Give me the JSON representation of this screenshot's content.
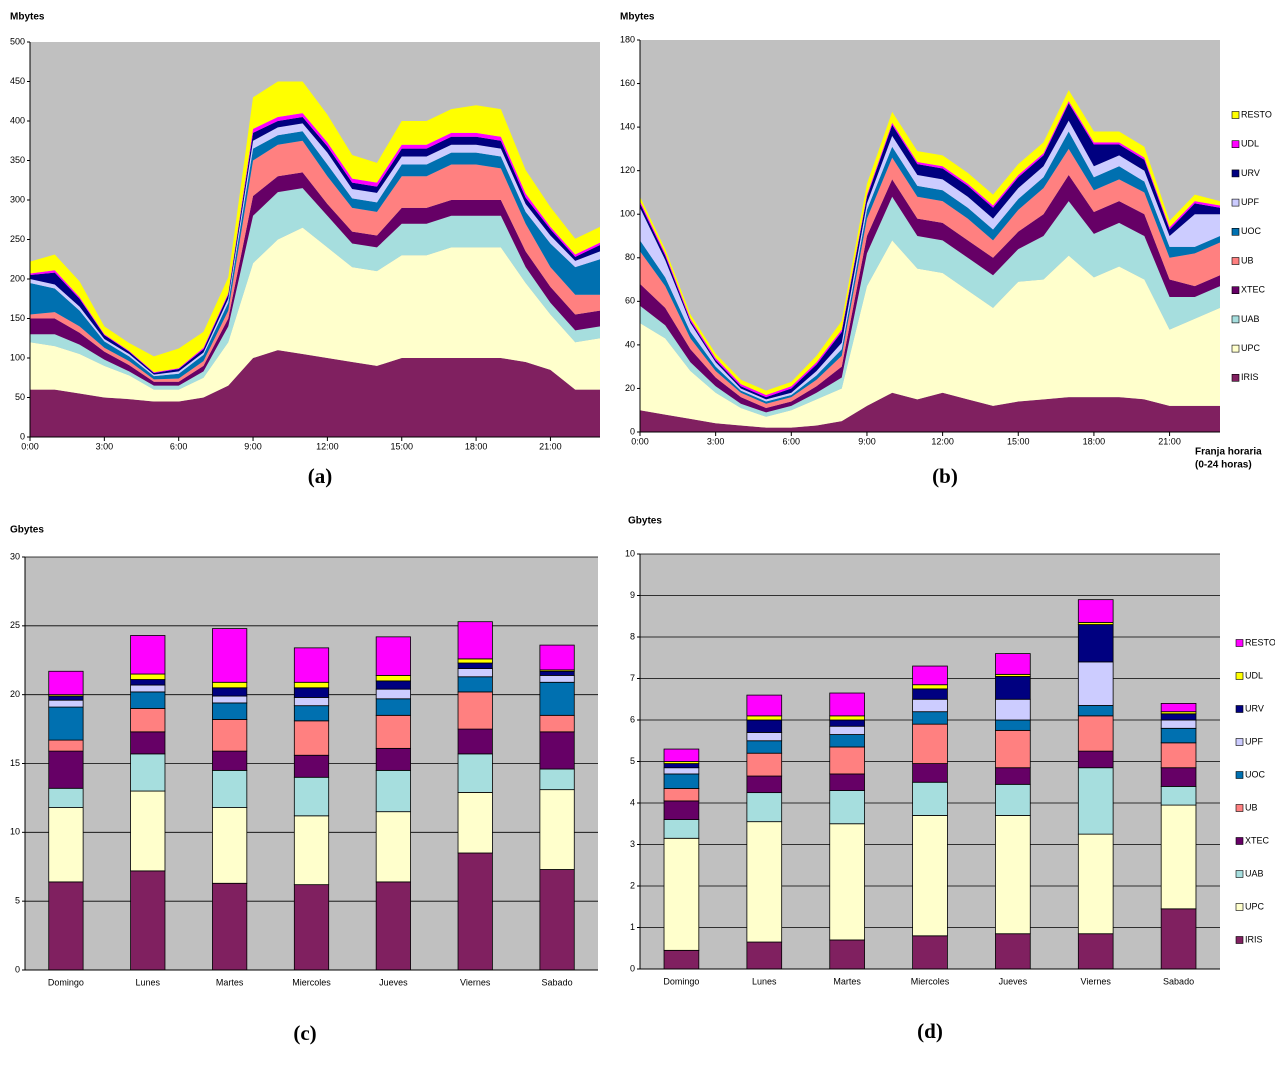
{
  "chart_data": [
    {
      "type": "area",
      "unit_label": "Mbytes",
      "caption": "(a)",
      "x": [
        0,
        1,
        2,
        3,
        4,
        5,
        6,
        7,
        8,
        9,
        10,
        11,
        12,
        13,
        14,
        15,
        16,
        17,
        18,
        19,
        20,
        21,
        22,
        23
      ],
      "xlim": [
        0,
        23
      ],
      "xticks": [
        {
          "value": 0,
          "label": "0:00"
        },
        {
          "value": 3,
          "label": "3:00"
        },
        {
          "value": 6,
          "label": "6:00"
        },
        {
          "value": 9,
          "label": "9:00"
        },
        {
          "value": 12,
          "label": "12:00"
        },
        {
          "value": 15,
          "label": "15:00"
        },
        {
          "value": 18,
          "label": "18:00"
        },
        {
          "value": 21,
          "label": "21:00"
        }
      ],
      "ylim": [
        0,
        500
      ],
      "yticks": [
        0,
        50,
        100,
        150,
        200,
        250,
        300,
        350,
        400,
        450,
        500
      ],
      "legend": false,
      "grid": false,
      "series": [
        {
          "name": "IRIS",
          "color": "#802060",
          "values": [
            60,
            60,
            55,
            50,
            48,
            45,
            45,
            50,
            65,
            100,
            110,
            105,
            100,
            95,
            90,
            100,
            100,
            100,
            100,
            100,
            95,
            85,
            60,
            60
          ]
        },
        {
          "name": "UPC",
          "color": "#ffffcc",
          "values": [
            60,
            55,
            50,
            40,
            30,
            15,
            15,
            25,
            55,
            120,
            140,
            160,
            140,
            120,
            120,
            130,
            130,
            140,
            140,
            140,
            100,
            70,
            60,
            65
          ]
        },
        {
          "name": "UAB",
          "color": "#a6dede",
          "values": [
            10,
            15,
            12,
            8,
            5,
            5,
            5,
            8,
            20,
            60,
            60,
            50,
            40,
            30,
            30,
            40,
            40,
            40,
            40,
            40,
            20,
            15,
            15,
            15
          ]
        },
        {
          "name": "XTEC",
          "color": "#660066",
          "values": [
            20,
            20,
            15,
            10,
            8,
            5,
            5,
            7,
            10,
            25,
            20,
            20,
            15,
            15,
            15,
            20,
            20,
            20,
            20,
            20,
            20,
            20,
            20,
            20
          ]
        },
        {
          "name": "UB",
          "color": "#ff8080",
          "values": [
            5,
            8,
            8,
            5,
            5,
            3,
            4,
            6,
            10,
            45,
            40,
            40,
            35,
            30,
            30,
            40,
            40,
            45,
            45,
            40,
            35,
            25,
            25,
            20
          ]
        },
        {
          "name": "UOC",
          "color": "#0070b0",
          "values": [
            40,
            30,
            20,
            8,
            6,
            4,
            6,
            8,
            10,
            15,
            12,
            12,
            15,
            12,
            12,
            15,
            15,
            15,
            15,
            15,
            15,
            30,
            35,
            45
          ]
        },
        {
          "name": "UPF",
          "color": "#ccccff",
          "values": [
            5,
            5,
            5,
            3,
            3,
            2,
            3,
            3,
            5,
            10,
            10,
            10,
            15,
            12,
            12,
            10,
            10,
            10,
            10,
            10,
            10,
            10,
            8,
            10
          ]
        },
        {
          "name": "URV",
          "color": "#000080",
          "values": [
            5,
            15,
            10,
            5,
            3,
            2,
            3,
            4,
            5,
            10,
            8,
            8,
            8,
            8,
            8,
            10,
            10,
            10,
            10,
            10,
            8,
            8,
            5,
            8
          ]
        },
        {
          "name": "UDL",
          "color": "#ff00ff",
          "values": [
            2,
            3,
            2,
            1,
            1,
            1,
            1,
            2,
            2,
            5,
            5,
            5,
            5,
            5,
            5,
            5,
            5,
            5,
            5,
            5,
            5,
            3,
            3,
            3
          ]
        },
        {
          "name": "RESTO",
          "color": "#ffff00",
          "values": [
            15,
            20,
            20,
            10,
            10,
            20,
            25,
            20,
            20,
            40,
            45,
            40,
            35,
            30,
            25,
            30,
            30,
            30,
            35,
            35,
            30,
            25,
            20,
            20
          ]
        }
      ]
    },
    {
      "type": "area",
      "unit_label": "Mbytes",
      "caption": "(b)",
      "x_label": [
        "Franja horaria",
        "(0-24 horas)"
      ],
      "x": [
        0,
        1,
        2,
        3,
        4,
        5,
        6,
        7,
        8,
        9,
        10,
        11,
        12,
        13,
        14,
        15,
        16,
        17,
        18,
        19,
        20,
        21,
        22,
        23
      ],
      "xlim": [
        0,
        23
      ],
      "xticks": [
        {
          "value": 0,
          "label": "0:00"
        },
        {
          "value": 3,
          "label": "3:00"
        },
        {
          "value": 6,
          "label": "6:00"
        },
        {
          "value": 9,
          "label": "9:00"
        },
        {
          "value": 12,
          "label": "12:00"
        },
        {
          "value": 15,
          "label": "15:00"
        },
        {
          "value": 18,
          "label": "18:00"
        },
        {
          "value": 21,
          "label": "21:00"
        }
      ],
      "ylim": [
        0,
        180
      ],
      "yticks": [
        0,
        20,
        40,
        60,
        80,
        100,
        120,
        140,
        160,
        180
      ],
      "legend": true,
      "grid": false,
      "series": [
        {
          "name": "IRIS",
          "color": "#802060",
          "values": [
            10,
            8,
            6,
            4,
            3,
            2,
            2,
            3,
            5,
            12,
            18,
            15,
            18,
            15,
            12,
            14,
            15,
            16,
            16,
            16,
            15,
            12,
            12,
            12
          ]
        },
        {
          "name": "UPC",
          "color": "#ffffcc",
          "values": [
            40,
            35,
            22,
            14,
            8,
            5,
            8,
            12,
            15,
            55,
            70,
            60,
            55,
            50,
            45,
            55,
            55,
            65,
            55,
            60,
            55,
            35,
            40,
            45
          ]
        },
        {
          "name": "UAB",
          "color": "#a6dede",
          "values": [
            8,
            6,
            4,
            3,
            2,
            2,
            2,
            3,
            5,
            15,
            20,
            15,
            15,
            15,
            15,
            15,
            20,
            25,
            20,
            20,
            20,
            15,
            10,
            10
          ]
        },
        {
          "name": "XTEC",
          "color": "#660066",
          "values": [
            10,
            8,
            6,
            4,
            3,
            2,
            2,
            3,
            5,
            8,
            8,
            8,
            8,
            8,
            8,
            8,
            10,
            12,
            10,
            10,
            10,
            8,
            5,
            5
          ]
        },
        {
          "name": "UB",
          "color": "#ff8080",
          "values": [
            15,
            10,
            5,
            3,
            2,
            2,
            2,
            3,
            5,
            8,
            10,
            10,
            10,
            10,
            8,
            10,
            12,
            12,
            10,
            10,
            10,
            10,
            15,
            15
          ]
        },
        {
          "name": "UOC",
          "color": "#0070b0",
          "values": [
            5,
            4,
            3,
            2,
            1,
            1,
            1,
            2,
            3,
            4,
            5,
            5,
            5,
            5,
            5,
            5,
            5,
            8,
            6,
            6,
            5,
            5,
            3,
            3
          ]
        },
        {
          "name": "UPF",
          "color": "#ccccff",
          "values": [
            15,
            8,
            4,
            2,
            1,
            1,
            1,
            2,
            3,
            3,
            5,
            5,
            5,
            5,
            5,
            5,
            5,
            5,
            5,
            5,
            5,
            5,
            15,
            10
          ]
        },
        {
          "name": "URV",
          "color": "#000080",
          "values": [
            2,
            2,
            1,
            1,
            1,
            1,
            2,
            3,
            5,
            3,
            5,
            5,
            5,
            5,
            5,
            5,
            5,
            8,
            10,
            5,
            5,
            3,
            5,
            3
          ]
        },
        {
          "name": "UDL",
          "color": "#ff00ff",
          "values": [
            1,
            1,
            1,
            1,
            1,
            1,
            1,
            1,
            1,
            1,
            1,
            1,
            1,
            1,
            1,
            1,
            1,
            1,
            1,
            1,
            1,
            1,
            1,
            1
          ]
        },
        {
          "name": "RESTO",
          "color": "#ffff00",
          "values": [
            2,
            2,
            2,
            2,
            2,
            2,
            2,
            3,
            4,
            5,
            5,
            5,
            5,
            5,
            5,
            5,
            5,
            5,
            5,
            5,
            5,
            3,
            3,
            2
          ]
        }
      ]
    },
    {
      "type": "bar",
      "unit_label": "Gbytes",
      "caption": "(c)",
      "categories": [
        "Domingo",
        "Lunes",
        "Martes",
        "Miercoles",
        "Jueves",
        "Viernes",
        "Sabado"
      ],
      "ylim": [
        0,
        30
      ],
      "yticks": [
        0,
        5,
        10,
        15,
        20,
        25,
        30
      ],
      "legend": false,
      "grid": true,
      "series": [
        {
          "name": "IRIS",
          "color": "#802060",
          "values": [
            6.4,
            7.2,
            6.3,
            6.2,
            6.4,
            8.5,
            7.3
          ]
        },
        {
          "name": "UPC",
          "color": "#ffffcc",
          "values": [
            5.4,
            5.8,
            5.5,
            5.0,
            5.1,
            4.4,
            5.8
          ]
        },
        {
          "name": "UAB",
          "color": "#a6dede",
          "values": [
            1.4,
            2.7,
            2.7,
            2.8,
            3.0,
            2.8,
            1.5
          ]
        },
        {
          "name": "XTEC",
          "color": "#660066",
          "values": [
            2.7,
            1.6,
            1.4,
            1.6,
            1.6,
            1.8,
            2.7
          ]
        },
        {
          "name": "UB",
          "color": "#ff8080",
          "values": [
            0.8,
            1.7,
            2.3,
            2.5,
            2.4,
            2.7,
            1.2
          ]
        },
        {
          "name": "UOC",
          "color": "#0070b0",
          "values": [
            2.4,
            1.2,
            1.2,
            1.1,
            1.2,
            1.1,
            2.4
          ]
        },
        {
          "name": "UPF",
          "color": "#ccccff",
          "values": [
            0.5,
            0.5,
            0.5,
            0.6,
            0.7,
            0.6,
            0.5
          ]
        },
        {
          "name": "URV",
          "color": "#000080",
          "values": [
            0.3,
            0.4,
            0.6,
            0.7,
            0.6,
            0.4,
            0.3
          ]
        },
        {
          "name": "UDL",
          "color": "#ffff00",
          "values": [
            0.1,
            0.4,
            0.4,
            0.4,
            0.4,
            0.3,
            0.1
          ]
        },
        {
          "name": "RESTO",
          "color": "#ff00ff",
          "values": [
            1.7,
            2.8,
            3.9,
            2.5,
            2.8,
            2.7,
            1.8
          ]
        }
      ]
    },
    {
      "type": "bar",
      "unit_label": "Gbytes",
      "caption": "(d)",
      "categories": [
        "Domingo",
        "Lunes",
        "Martes",
        "Miercoles",
        "Jueves",
        "Viernes",
        "Sabado"
      ],
      "ylim": [
        0,
        10
      ],
      "yticks": [
        0,
        1,
        2,
        3,
        4,
        5,
        6,
        7,
        8,
        9,
        10
      ],
      "legend": true,
      "grid": true,
      "series": [
        {
          "name": "IRIS",
          "color": "#802060",
          "values": [
            0.45,
            0.65,
            0.7,
            0.8,
            0.85,
            0.85,
            1.45
          ]
        },
        {
          "name": "UPC",
          "color": "#ffffcc",
          "values": [
            2.7,
            2.9,
            2.8,
            2.9,
            2.85,
            2.4,
            2.5
          ]
        },
        {
          "name": "UAB",
          "color": "#a6dede",
          "values": [
            0.45,
            0.7,
            0.8,
            0.8,
            0.75,
            1.6,
            0.45
          ]
        },
        {
          "name": "XTEC",
          "color": "#660066",
          "values": [
            0.45,
            0.4,
            0.4,
            0.45,
            0.4,
            0.4,
            0.45
          ]
        },
        {
          "name": "UB",
          "color": "#ff8080",
          "values": [
            0.3,
            0.55,
            0.65,
            0.95,
            0.9,
            0.85,
            0.6
          ]
        },
        {
          "name": "UOC",
          "color": "#0070b0",
          "values": [
            0.35,
            0.3,
            0.3,
            0.3,
            0.25,
            0.25,
            0.35
          ]
        },
        {
          "name": "UPF",
          "color": "#ccccff",
          "values": [
            0.15,
            0.2,
            0.2,
            0.3,
            0.5,
            1.05,
            0.2
          ]
        },
        {
          "name": "URV",
          "color": "#000080",
          "values": [
            0.1,
            0.3,
            0.15,
            0.25,
            0.55,
            0.9,
            0.15
          ]
        },
        {
          "name": "UDL",
          "color": "#ffff00",
          "values": [
            0.05,
            0.1,
            0.1,
            0.1,
            0.05,
            0.05,
            0.05
          ]
        },
        {
          "name": "RESTO",
          "color": "#ff00ff",
          "values": [
            0.3,
            0.5,
            0.55,
            0.45,
            0.5,
            0.55,
            0.2
          ]
        }
      ]
    }
  ]
}
